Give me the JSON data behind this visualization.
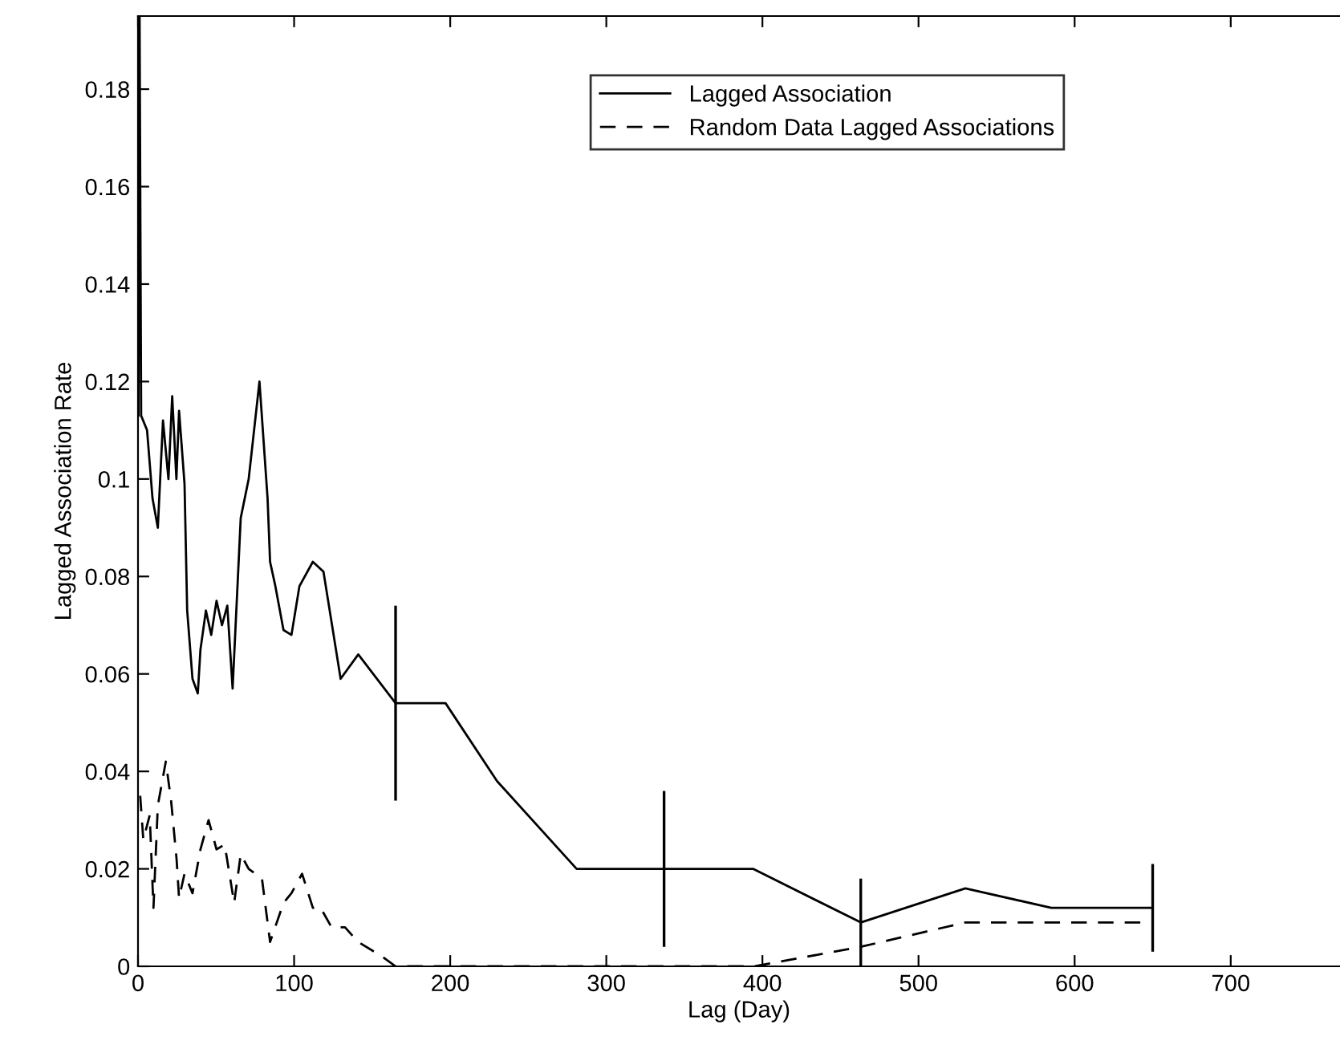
{
  "chart_data": {
    "type": "line",
    "xlabel": "Lag (Day)",
    "ylabel": "Lagged Association Rate",
    "xlim": [
      0,
      770
    ],
    "ylim": [
      0,
      0.195
    ],
    "xticks": [
      0,
      100,
      200,
      300,
      400,
      500,
      600,
      700
    ],
    "yticks": [
      0,
      0.02,
      0.04,
      0.06,
      0.08,
      0.1,
      0.12,
      0.14,
      0.16,
      0.18
    ],
    "grid": false,
    "legend": "top right",
    "marker": "none",
    "series": [
      {
        "name": "Lagged Association",
        "color": "#000000",
        "line_style": "solid",
        "x": [
          0.3,
          1,
          2,
          5.8,
          9.3,
          12.7,
          16,
          19.5,
          21.9,
          24.6,
          26.3,
          29.8,
          31.5,
          34.9,
          38.3,
          40,
          43.5,
          46.9,
          50.3,
          53.8,
          57.2,
          60.6,
          65.8,
          70.9,
          77.8,
          83,
          84.6,
          88,
          93.2,
          98.3,
          103.4,
          112,
          118.8,
          129.8,
          141.1,
          165,
          197,
          230,
          281,
          337,
          394,
          463,
          530,
          585,
          650
        ],
        "values": [
          0.113,
          0.195,
          0.113,
          0.11,
          0.096,
          0.09,
          0.112,
          0.1,
          0.117,
          0.1,
          0.114,
          0.099,
          0.073,
          0.059,
          0.056,
          0.065,
          0.073,
          0.068,
          0.075,
          0.07,
          0.074,
          0.057,
          0.092,
          0.1,
          0.12,
          0.096,
          0.083,
          0.078,
          0.069,
          0.068,
          0.078,
          0.083,
          0.081,
          0.059,
          0.064,
          0.054,
          0.054,
          0.038,
          0.02,
          0.02,
          0.02,
          0.009,
          0.016,
          0.012,
          0.012
        ],
        "errors": [
          null,
          null,
          null,
          null,
          null,
          null,
          null,
          null,
          null,
          null,
          null,
          null,
          null,
          null,
          null,
          null,
          null,
          null,
          null,
          null,
          null,
          null,
          null,
          null,
          null,
          null,
          null,
          null,
          null,
          null,
          null,
          null,
          null,
          null,
          null,
          [
            0.034,
            0.074
          ],
          null,
          null,
          null,
          [
            0.004,
            0.036
          ],
          null,
          [
            0,
            0.018
          ],
          null,
          null,
          [
            0.003,
            0.021
          ]
        ]
      },
      {
        "name": "Random Data Lagged Associations",
        "color": "#000000",
        "line_style": "dashed",
        "x": [
          1.4,
          3.4,
          7.5,
          9.9,
          12.7,
          17.8,
          21.2,
          24.7,
          26.3,
          29.8,
          34.9,
          40,
          45.2,
          50.3,
          55.5,
          61.6,
          65.8,
          70.9,
          79.4,
          84.6,
          93.2,
          98.3,
          105.1,
          112,
          117,
          124,
          132.6,
          141,
          156.5,
          165,
          395,
          463,
          530,
          650
        ],
        "values": [
          0.035,
          0.026,
          0.031,
          0.012,
          0.033,
          0.042,
          0.034,
          0.022,
          0.014,
          0.019,
          0.015,
          0.024,
          0.03,
          0.024,
          0.025,
          0.013,
          0.023,
          0.02,
          0.018,
          0.005,
          0.013,
          0.015,
          0.019,
          0.012,
          0.012,
          0.008,
          0.008,
          0.005,
          0.002,
          0,
          0,
          0.004,
          0.009,
          0.009
        ]
      }
    ]
  }
}
